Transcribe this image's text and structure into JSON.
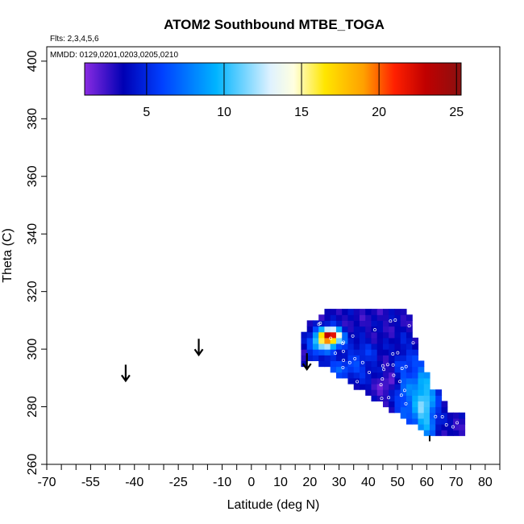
{
  "chart_data": {
    "type": "heatmap",
    "title": "ATOM2 Southbound MTBE_TOGA",
    "xlabel": "Latitude (deg N)",
    "ylabel": "Theta (C)",
    "xlim": [
      -70,
      85
    ],
    "ylim": [
      260,
      405
    ],
    "x_ticks_major": [
      -70,
      -55,
      -40,
      -25,
      -10,
      0,
      10,
      20,
      30,
      40,
      50,
      60,
      70,
      80
    ],
    "x_ticks_minor": [
      -65,
      -60,
      -50,
      -45,
      -35,
      -30,
      -20,
      -15,
      -5,
      5,
      15,
      25,
      35,
      45,
      55,
      65,
      75,
      85
    ],
    "y_ticks": [
      260,
      280,
      300,
      320,
      340,
      360,
      380,
      400
    ],
    "annotations": {
      "flights": "Flts: 2,3,4,5,6",
      "dates": "MMDD: 0129,0201,0203,0205,0210"
    },
    "colorbar": {
      "range": [
        1,
        25.3
      ],
      "ticks": [
        5,
        10,
        15,
        20,
        25
      ],
      "tick_labels": [
        "5",
        "10",
        "15",
        "20",
        "25"
      ],
      "stops": [
        {
          "value": 1.0,
          "color": "#8a2be2"
        },
        {
          "value": 3.5,
          "color": "#0000b4"
        },
        {
          "value": 6.0,
          "color": "#0040ff"
        },
        {
          "value": 9.5,
          "color": "#00b4ff"
        },
        {
          "value": 13.0,
          "color": "#dff2ff"
        },
        {
          "value": 14.5,
          "color": "#ffffe0"
        },
        {
          "value": 16.5,
          "color": "#ffe600"
        },
        {
          "value": 19.0,
          "color": "#ffa000"
        },
        {
          "value": 21.0,
          "color": "#ff2000"
        },
        {
          "value": 23.0,
          "color": "#c00000"
        },
        {
          "value": 25.3,
          "color": "#8b1010"
        }
      ]
    },
    "arrows": [
      {
        "lat": -43,
        "theta": 289
      },
      {
        "lat": -18,
        "theta": 298
      },
      {
        "lat": 19,
        "theta": 293
      }
    ],
    "field": {
      "lat_min": 17,
      "lat_max": 73,
      "lat_step": 2,
      "theta_min": 268,
      "theta_max": 315,
      "theta_step": 2,
      "background": 3.2,
      "features": [
        {
          "lat": 27,
          "theta": 305,
          "sx": 2.6,
          "sy": 1.8,
          "amp": 19
        },
        {
          "lat": 24,
          "theta": 302,
          "sx": 4,
          "sy": 2.2,
          "amp": 8
        },
        {
          "lat": 59,
          "theta": 281,
          "sx": 3,
          "sy": 10,
          "amp": 8
        },
        {
          "lat": 52,
          "theta": 287,
          "sx": 2.5,
          "sy": 9,
          "amp": 4
        },
        {
          "lat": 31,
          "theta": 293,
          "sx": 10,
          "sy": 3,
          "amp": 3
        },
        {
          "lat": 38,
          "theta": 300,
          "sx": 4,
          "sy": 2.5,
          "amp": 2
        }
      ],
      "dips": [
        {
          "lat": 48,
          "theta": 290,
          "sx": 4,
          "sy": 4,
          "amp": 2.2
        },
        {
          "lat": 18,
          "theta": 301,
          "sx": 2,
          "sy": 3,
          "amp": 2.2
        }
      ]
    }
  }
}
